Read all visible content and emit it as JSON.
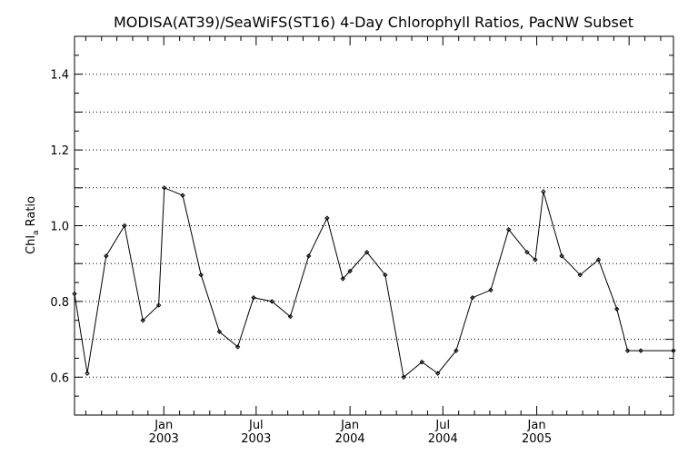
{
  "chart_data": {
    "type": "line",
    "title": "MODISA(AT39)/SeaWiFS(ST16) 4-Day Chlorophyll Ratios, PacNW Subset",
    "ylabel": "Chl_a Ratio",
    "xlabel": "",
    "ylim": [
      0.5,
      1.5
    ],
    "xlim": [
      "2002-07-10",
      "2005-09-26"
    ],
    "yticks": [
      0.6,
      0.8,
      1.0,
      1.2,
      1.4
    ],
    "ytick_labels": [
      "0.6",
      "0.8",
      "1.0",
      "1.2",
      "1.4"
    ],
    "xticks": [
      {
        "date": "2003-01-01",
        "month": "Jan",
        "year": "2003"
      },
      {
        "date": "2003-07-01",
        "month": "Jul",
        "year": "2003"
      },
      {
        "date": "2004-01-01",
        "month": "Jan",
        "year": "2004"
      },
      {
        "date": "2004-07-01",
        "month": "Jul",
        "year": "2004"
      },
      {
        "date": "2005-01-01",
        "month": "Jan",
        "year": "2005"
      }
    ],
    "grid": "horizontal-dotted",
    "series": [
      {
        "x": [
          "2002-07-10",
          "2002-08-04",
          "2002-09-10",
          "2002-10-16",
          "2002-11-21",
          "2002-12-22",
          "2003-01-02",
          "2003-02-07",
          "2003-03-15",
          "2003-04-20",
          "2003-05-26",
          "2003-06-26",
          "2003-08-01",
          "2003-09-06",
          "2003-10-12",
          "2003-11-17",
          "2003-12-18",
          "2004-01-01",
          "2004-02-03",
          "2004-03-10",
          "2004-04-15",
          "2004-05-21",
          "2004-06-21",
          "2004-07-27",
          "2004-08-28",
          "2004-10-03",
          "2004-11-07",
          "2004-12-13",
          "2004-12-29",
          "2005-01-14",
          "2005-02-19",
          "2005-03-27",
          "2005-05-02",
          "2005-06-07",
          "2005-06-28",
          "2005-07-24",
          "2005-09-26"
        ],
        "values": [
          0.82,
          0.61,
          0.92,
          1.0,
          0.75,
          0.79,
          1.1,
          1.08,
          0.87,
          0.72,
          0.68,
          0.81,
          0.8,
          0.76,
          0.92,
          1.02,
          0.86,
          0.88,
          0.93,
          0.87,
          0.6,
          0.64,
          0.61,
          0.67,
          0.81,
          0.83,
          0.99,
          0.93,
          0.91,
          1.09,
          0.92,
          0.87,
          0.91,
          0.78,
          0.67,
          0.67,
          0.67
        ]
      }
    ]
  }
}
